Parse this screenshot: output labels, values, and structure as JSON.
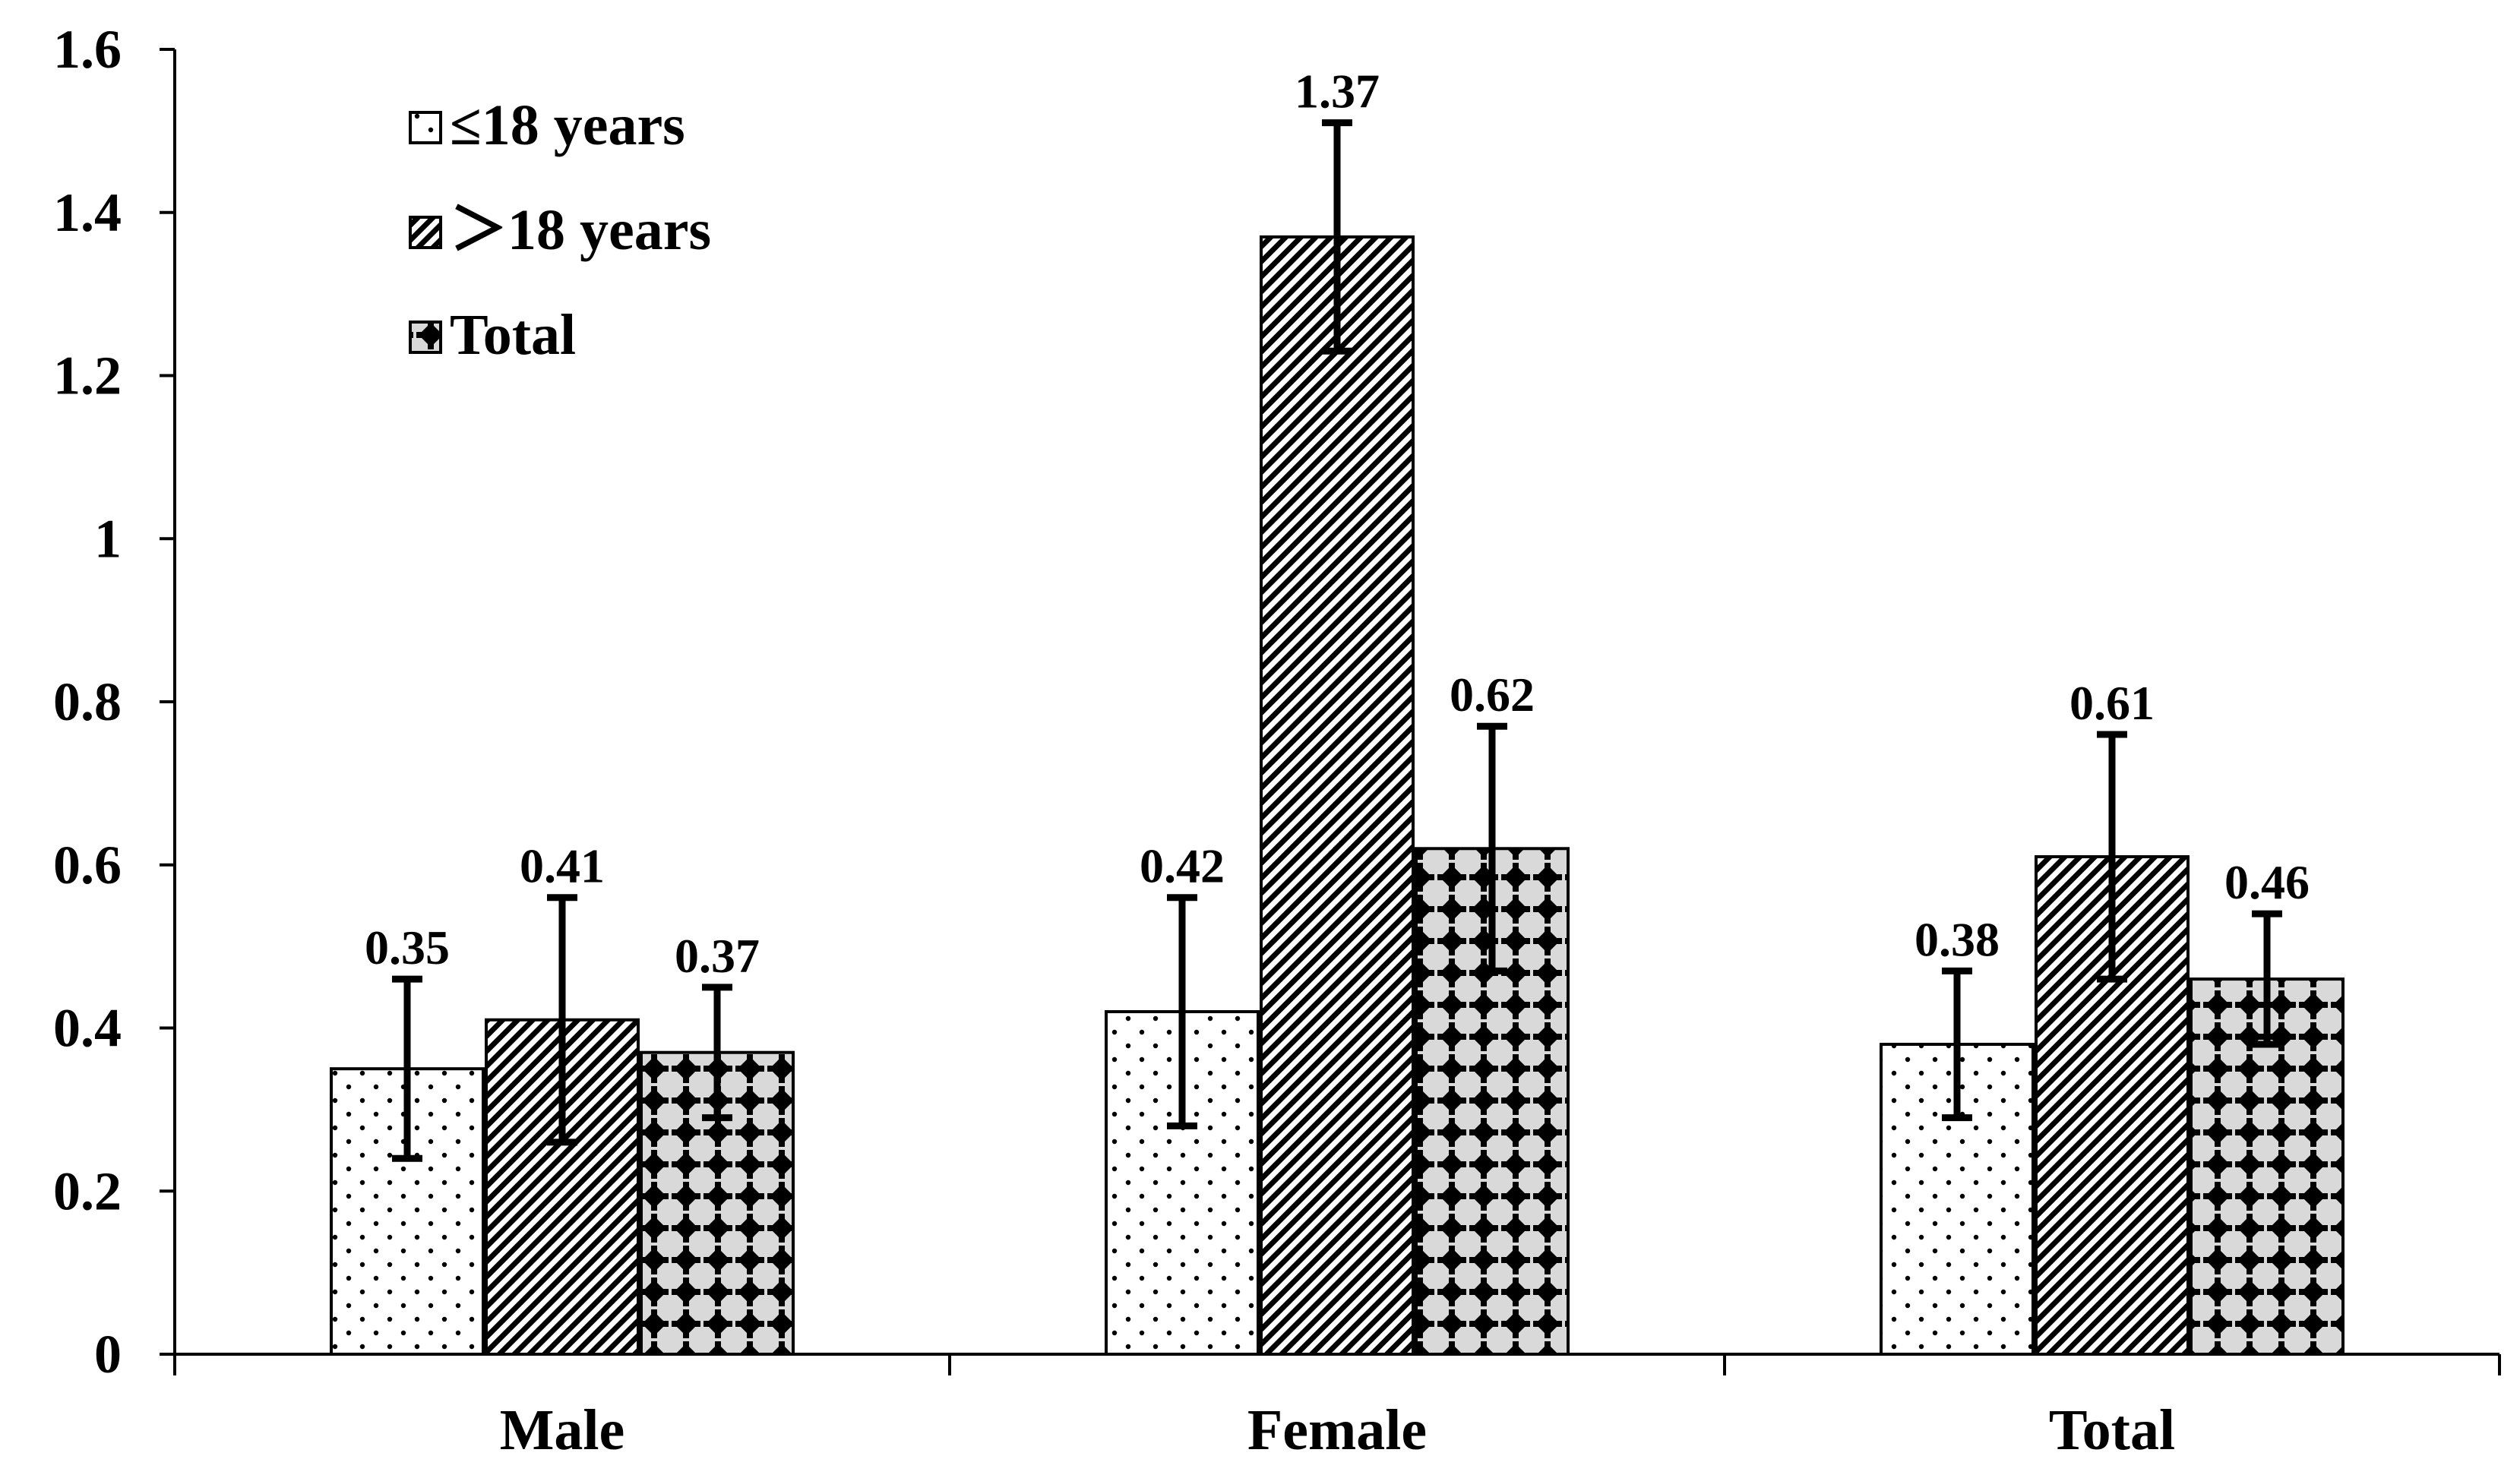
{
  "chart_data": {
    "type": "bar",
    "title": "",
    "xlabel": "",
    "ylabel": "",
    "ylim": [
      0,
      1.6
    ],
    "yticks": [
      0,
      0.2,
      0.4,
      0.6,
      0.8,
      1,
      1.2,
      1.4,
      1.6
    ],
    "ytick_labels": [
      "0",
      "0.2",
      "0.4",
      "0.6",
      "0.8",
      "1",
      "1.2",
      "1.4",
      "1.6"
    ],
    "categories": [
      "Male",
      "Female",
      "Total"
    ],
    "grid": false,
    "legend_position": "top-left",
    "series": [
      {
        "name": "≤18 years",
        "pattern": "dots",
        "values": [
          0.35,
          0.42,
          0.38
        ],
        "labels": [
          "0.35",
          "0.42",
          "0.38"
        ],
        "err_low": [
          0.24,
          0.28,
          0.29
        ],
        "err_high": [
          0.46,
          0.56,
          0.47
        ]
      },
      {
        "name": "＞18 years",
        "pattern": "diagonal-stripes",
        "values": [
          0.41,
          1.37,
          0.61
        ],
        "labels": [
          "0.41",
          "1.37",
          "0.61"
        ],
        "err_low": [
          0.26,
          1.23,
          0.46
        ],
        "err_high": [
          0.56,
          1.51,
          0.76
        ]
      },
      {
        "name": "Total",
        "pattern": "diamonds",
        "values": [
          0.37,
          0.62,
          0.46
        ],
        "labels": [
          "0.37",
          "0.62",
          "0.46"
        ],
        "err_low": [
          0.29,
          0.47,
          0.38
        ],
        "err_high": [
          0.45,
          0.77,
          0.54
        ]
      }
    ]
  },
  "colors": {
    "axis": "#000000",
    "dots_bg": "#ffffff",
    "stripes_bg": "#ffffff",
    "diamonds_bg": "#d9d9d9",
    "ink": "#000000"
  }
}
